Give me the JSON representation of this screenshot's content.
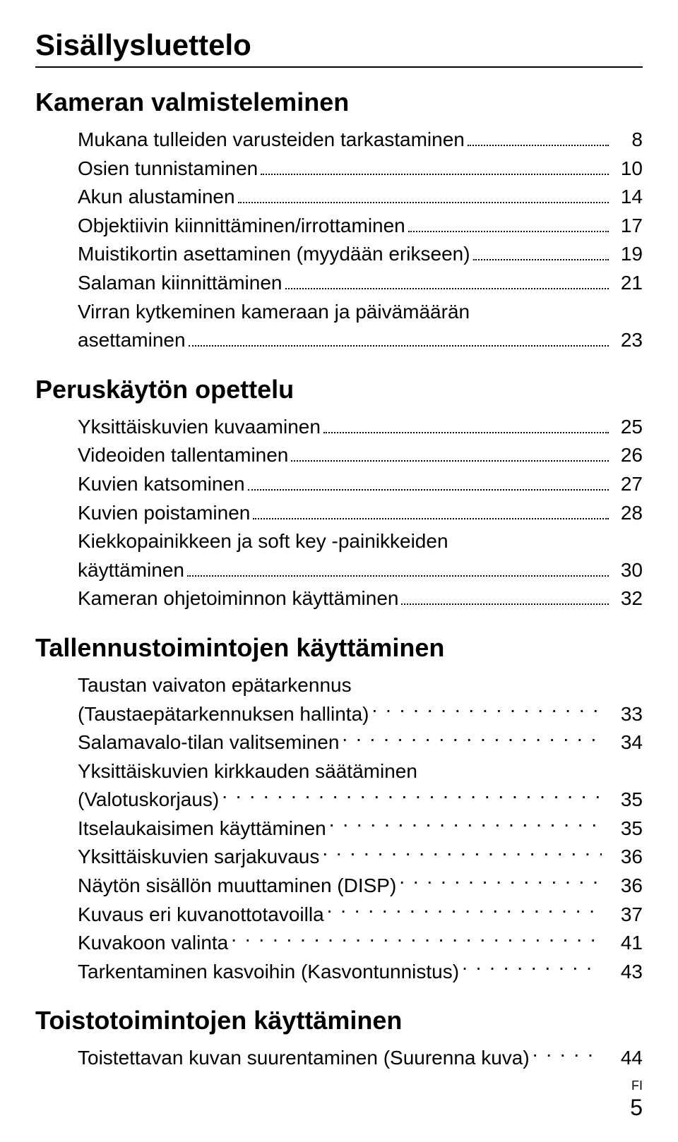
{
  "title": "Sisällysluettelo",
  "footer": {
    "lang": "FI",
    "page": "5"
  },
  "sections": [
    {
      "heading": "Kameran valmisteleminen",
      "entries": [
        {
          "label": "Mukana tulleiden varusteiden tarkastaminen",
          "page": "8",
          "tight": true
        },
        {
          "label": "Osien tunnistaminen",
          "page": "10",
          "tight": true
        },
        {
          "label": "Akun alustaminen",
          "page": "14",
          "tight": true
        },
        {
          "label": "Objektiivin kiinnittäminen/irrottaminen",
          "page": "17",
          "tight": true
        },
        {
          "label": "Muistikortin asettaminen (myydään erikseen)",
          "page": "19",
          "tight": true
        },
        {
          "label": "Salaman kiinnittäminen",
          "page": "21",
          "tight": true
        },
        {
          "labelLines": [
            "Virran kytkeminen kameraan ja päivämäärän",
            "asettaminen"
          ],
          "page": "23",
          "tight": true
        }
      ]
    },
    {
      "heading": "Peruskäytön opettelu",
      "entries": [
        {
          "label": "Yksittäiskuvien kuvaaminen",
          "page": "25",
          "tight": true
        },
        {
          "label": "Videoiden tallentaminen",
          "page": "26",
          "tight": true
        },
        {
          "label": "Kuvien katsominen",
          "page": "27",
          "tight": true
        },
        {
          "label": "Kuvien poistaminen",
          "page": "28",
          "tight": true
        },
        {
          "labelLines": [
            "Kiekkopainikkeen ja soft key -painikkeiden",
            "käyttäminen"
          ],
          "page": "30",
          "tight": true
        },
        {
          "label": "Kameran ohjetoiminnon käyttäminen",
          "page": "32",
          "tight": true
        }
      ]
    },
    {
      "heading": "Tallennustoimintojen käyttäminen",
      "entries": [
        {
          "labelLines": [
            "Taustan vaivaton epätarkennus",
            "(Taustaepätarkennuksen hallinta)"
          ],
          "page": "33",
          "tight": false
        },
        {
          "label": "Salamavalo-tilan valitseminen",
          "page": "34",
          "tight": false
        },
        {
          "labelLines": [
            "Yksittäiskuvien kirkkauden säätäminen",
            "(Valotuskorjaus)"
          ],
          "page": "35",
          "tight": false
        },
        {
          "label": "Itselaukaisimen käyttäminen",
          "page": "35",
          "tight": false
        },
        {
          "label": "Yksittäiskuvien sarjakuvaus",
          "page": "36",
          "tight": false
        },
        {
          "label": "Näytön sisällön muuttaminen (DISP)",
          "page": "36",
          "tight": false
        },
        {
          "label": "Kuvaus eri kuvanottotavoilla",
          "page": "37",
          "tight": false
        },
        {
          "label": "Kuvakoon valinta",
          "page": "41",
          "tight": false
        },
        {
          "label": "Tarkentaminen kasvoihin (Kasvontunnistus)",
          "page": "43",
          "tight": false
        }
      ]
    },
    {
      "heading": "Toistotoimintojen käyttäminen",
      "entries": [
        {
          "label": "Toistettavan kuvan suurentaminen (Suurenna kuva)",
          "page": "44",
          "tight": false
        }
      ]
    }
  ]
}
